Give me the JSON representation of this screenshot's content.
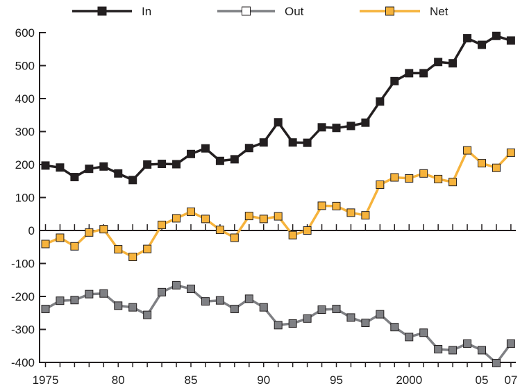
{
  "chart_data": {
    "type": "line",
    "title": "",
    "xlabel": "",
    "ylabel": "",
    "x": [
      1975,
      1976,
      1977,
      1978,
      1979,
      1980,
      1981,
      1982,
      1983,
      1984,
      1985,
      1986,
      1987,
      1988,
      1989,
      1990,
      1991,
      1992,
      1993,
      1994,
      1995,
      1996,
      1997,
      1998,
      1999,
      2000,
      2001,
      2002,
      2003,
      2004,
      2005,
      2006,
      2007
    ],
    "x_tick_values": [
      1975,
      1980,
      1985,
      1990,
      1995,
      2000,
      2005,
      2007
    ],
    "x_tick_labels": [
      "1975",
      "80",
      "85",
      "90",
      "95",
      "2000",
      "05",
      "07"
    ],
    "y_ticks": [
      600,
      500,
      400,
      300,
      200,
      100,
      0,
      -100,
      -200,
      -300,
      -400
    ],
    "y_tick_labels": [
      "600",
      "500",
      "400",
      "300",
      "200",
      "100",
      "0",
      "-100",
      "-200",
      "-300",
      "-400"
    ],
    "ylim": [
      -400,
      600
    ],
    "xlim": [
      1975,
      2007
    ],
    "grid": false,
    "legend_position": "top",
    "series": [
      {
        "name": "In",
        "color": "#231f20",
        "marker_fill": "#231f20",
        "values": [
          197,
          191,
          162,
          187,
          194,
          173,
          153,
          200,
          202,
          201,
          232,
          249,
          211,
          216,
          250,
          267,
          328,
          267,
          266,
          313,
          311,
          317,
          327,
          391,
          453,
          477,
          477,
          511,
          507,
          583,
          563,
          590,
          576
        ]
      },
      {
        "name": "Out",
        "color": "#7f8084",
        "marker_fill": "#7f8084",
        "values": [
          -238,
          -213,
          -211,
          -193,
          -191,
          -228,
          -233,
          -256,
          -187,
          -166,
          -177,
          -215,
          -212,
          -238,
          -207,
          -233,
          -287,
          -282,
          -267,
          -240,
          -238,
          -264,
          -280,
          -254,
          -293,
          -323,
          -310,
          -360,
          -363,
          -343,
          -363,
          -402,
          -343
        ]
      },
      {
        "name": "Net",
        "color": "#f6b33c",
        "marker_fill": "#f6b33c",
        "values": [
          -41,
          -22,
          -48,
          -6,
          4,
          -57,
          -80,
          -56,
          17,
          37,
          57,
          35,
          2,
          -22,
          44,
          35,
          43,
          -14,
          0,
          75,
          74,
          54,
          46,
          139,
          161,
          158,
          173,
          156,
          147,
          243,
          204,
          190,
          236
        ]
      }
    ]
  }
}
